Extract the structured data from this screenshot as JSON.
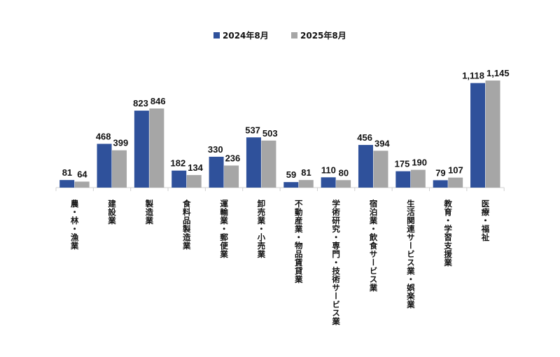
{
  "chart_data": {
    "type": "bar",
    "title": "",
    "xlabel": "",
    "ylabel": "",
    "ylim": [
      0,
      1200
    ],
    "grid": false,
    "legend_position": "top",
    "categories": [
      "農・林・漁業",
      "建設業",
      "製造業",
      "食料品製造業",
      "運輸業・郵便業",
      "卸売業・小売業",
      "不動産業・物品賃貸業",
      "学術研究・専門・技術サービス業",
      "宿泊業・飲食サービス業",
      "生活関連サービス業・娯楽業",
      "教育・学習支援業",
      "医療・福祉"
    ],
    "series": [
      {
        "name": "2024年8月",
        "color": "#2f519b",
        "values": [
          81,
          468,
          823,
          182,
          330,
          537,
          59,
          110,
          456,
          175,
          79,
          1118
        ]
      },
      {
        "name": "2025年8月",
        "color": "#a6a6a6",
        "values": [
          64,
          399,
          846,
          134,
          236,
          503,
          81,
          80,
          394,
          190,
          107,
          1145
        ]
      }
    ],
    "data_labels": [
      [
        "81",
        "468",
        "823",
        "182",
        "330",
        "537",
        "59",
        "110",
        "456",
        "175",
        "79",
        "1,118"
      ],
      [
        "64",
        "399",
        "846",
        "134",
        "236",
        "503",
        "81",
        "80",
        "394",
        "190",
        "107",
        "1,145"
      ]
    ]
  }
}
